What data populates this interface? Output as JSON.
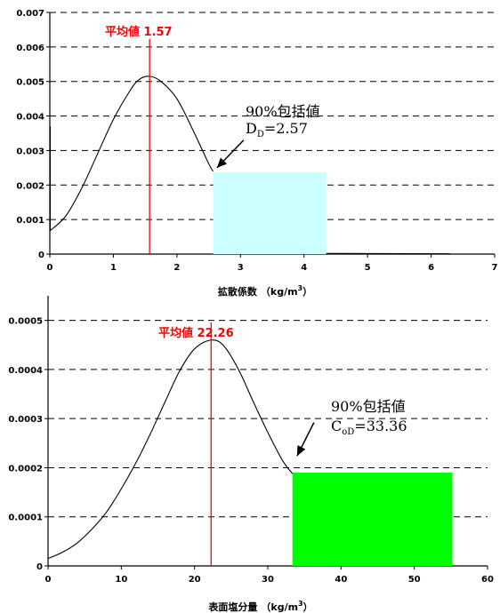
{
  "chart_data": [
    {
      "type": "line",
      "id": "top",
      "xlim": [
        0,
        7
      ],
      "ylim": [
        0,
        0.007
      ],
      "xticks": [
        "0",
        "1",
        "2",
        "3",
        "4",
        "5",
        "6",
        "7"
      ],
      "yticks": [
        "0",
        "0.001",
        "0.002",
        "0.003",
        "0.004",
        "0.005",
        "0.006",
        "0.007"
      ],
      "xlabel_main": "拡散係数",
      "xlabel_unit_open": "（kg/m",
      "xlabel_unit_sup": "3",
      "xlabel_unit_close": "）",
      "grid": "horizontal-dashed",
      "curve": {
        "x": [
          0.0,
          0.25,
          0.5,
          0.75,
          1.0,
          1.25,
          1.4,
          1.57,
          1.75,
          2.0,
          2.25,
          2.5,
          2.57
        ],
        "y": [
          0.00067,
          0.0011,
          0.0019,
          0.0029,
          0.0039,
          0.0047,
          0.00505,
          0.00515,
          0.005,
          0.0045,
          0.0036,
          0.00262,
          0.0024
        ]
      },
      "spike": {
        "x": [
          0.0,
          0.0
        ],
        "y": [
          0.0037,
          0.00067
        ]
      },
      "tail": {
        "x": [
          4.35,
          6.3
        ],
        "y": [
          2e-05,
          1e-05
        ]
      },
      "mean": {
        "value": 1.57,
        "label": "平均値 1.57",
        "color": "#ff0000"
      },
      "box": {
        "x0": 2.57,
        "x1": 4.35,
        "y": 0.00237,
        "color": "#ccffff"
      },
      "annotation": {
        "line1": "90%包括値",
        "line2_main": "D",
        "line2_sub": "D",
        "line2_value": "=2.57",
        "arrow_from": [
          3.05,
          0.0033
        ],
        "arrow_to": [
          2.63,
          0.0025
        ]
      }
    },
    {
      "type": "line",
      "id": "bottom",
      "xlim": [
        0,
        60
      ],
      "ylim": [
        0,
        0.00055
      ],
      "xticks": [
        "0",
        "10",
        "20",
        "30",
        "40",
        "50",
        "60"
      ],
      "yticks": [
        "0",
        "0.0001",
        "0.0002",
        "0.0003",
        "0.0004",
        "0.0005"
      ],
      "xlabel_main": "表面塩分量",
      "xlabel_unit_open": "（kg/m",
      "xlabel_unit_sup": "3",
      "xlabel_unit_close": "）",
      "grid": "horizontal-dashed",
      "curve": {
        "x": [
          0,
          2,
          4,
          6,
          8,
          10,
          12,
          14,
          16,
          18,
          20,
          22.26,
          24,
          26,
          28,
          30,
          32,
          33.36
        ],
        "y": [
          1.5e-05,
          2.8e-05,
          4.7e-05,
          7.5e-05,
          0.00011,
          0.000157,
          0.00021,
          0.00027,
          0.000335,
          0.000398,
          0.000442,
          0.00046,
          0.000448,
          0.0004,
          0.000335,
          0.000272,
          0.000215,
          0.000188
        ]
      },
      "mean": {
        "value": 22.26,
        "label": "平均値 22.26",
        "color": "#ff0000"
      },
      "box": {
        "x0": 33.36,
        "x1": 55.2,
        "y": 0.00019,
        "color": "#00ff00"
      },
      "annotation": {
        "line1": "90%包括値",
        "line2_main": "C",
        "line2_sub": "oD",
        "line2_value": "=33.36",
        "arrow_from": [
          36.3,
          0.000292
        ],
        "arrow_to": [
          34.0,
          0.000224
        ]
      }
    }
  ]
}
